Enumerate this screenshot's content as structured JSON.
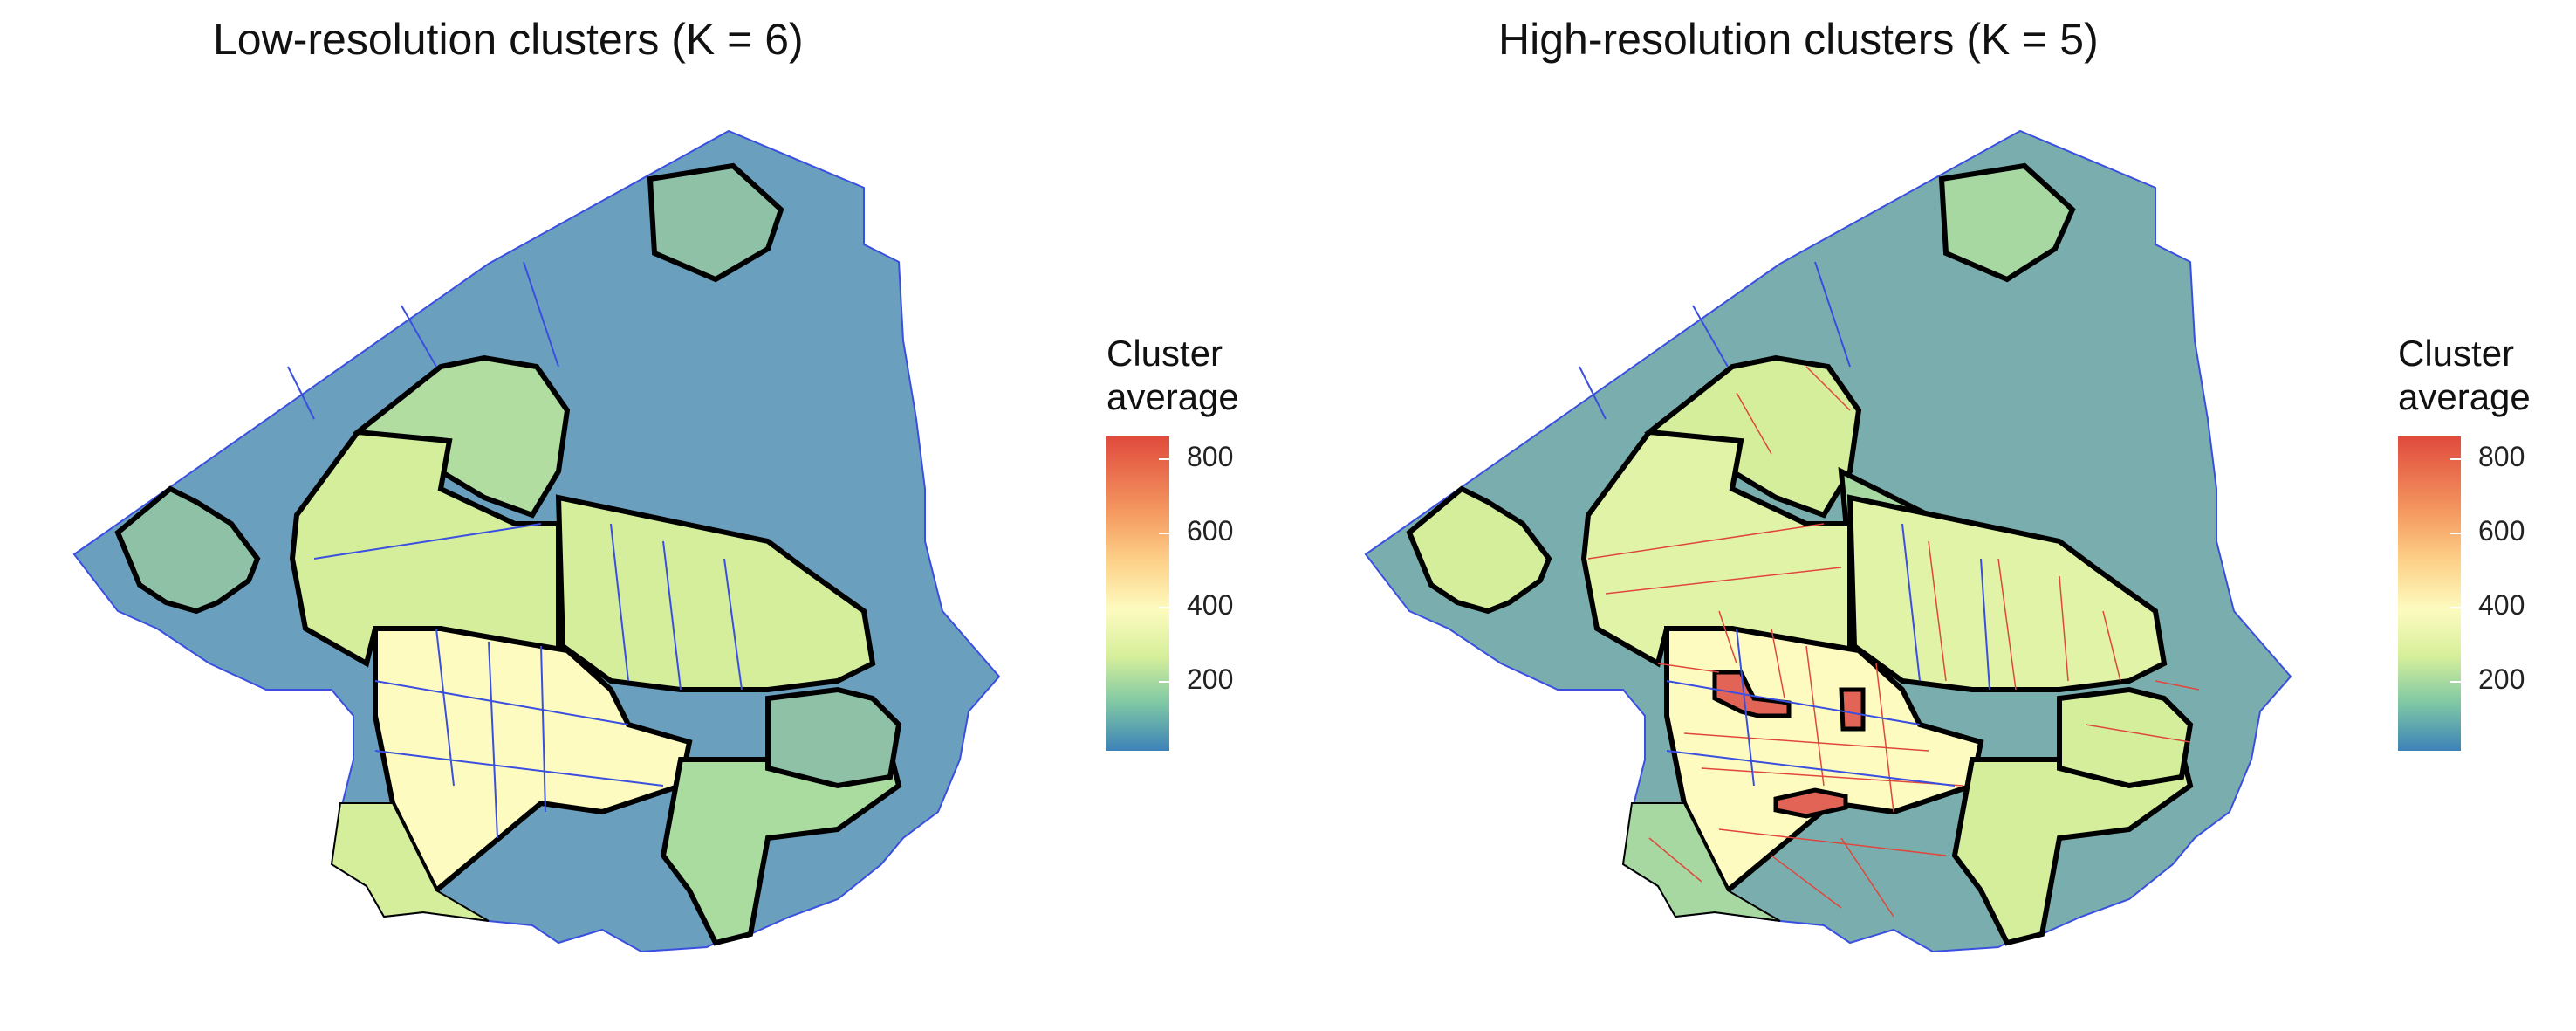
{
  "panels": [
    {
      "title": "Low-resolution clusters (K = 6)"
    },
    {
      "title": "High-resolution clusters (K = 5)"
    }
  ],
  "legend": {
    "title_line1": "Cluster",
    "title_line2": "average",
    "ticks": [
      "800",
      "600",
      "400",
      "200"
    ],
    "colors": [
      "#3d82b8",
      "#7ec7a5",
      "#d6ef9a",
      "#fdfbbf",
      "#fdd28a",
      "#f59c62",
      "#e04a3c"
    ]
  },
  "colors": {
    "background_left": "#6a9fbe",
    "background_right": "#7aaeae",
    "outline": "#3a4fe0",
    "cluster_border": "#000000",
    "high_res_subdivision": "#e0463c"
  }
}
